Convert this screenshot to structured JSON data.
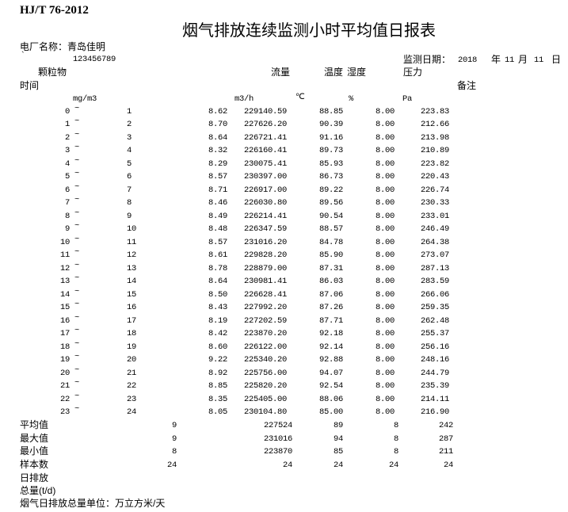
{
  "header": {
    "standard": "HJ/T 76-2012",
    "title": "烟气排放连续监测小时平均值日报表",
    "plant_label": "电厂名称：",
    "plant_name": "青岛佳明",
    "backtick": "`",
    "code": "123456789",
    "date_label": "监测日期：",
    "year": "2018",
    "year_unit": "年",
    "month": "11",
    "month_unit": "月",
    "day": "11",
    "day_unit": "日"
  },
  "columns": {
    "particulate": "颗粒物",
    "flow": "流量",
    "temp": "温度",
    "humidity": "湿度",
    "pressure": "压力",
    "time": "时间",
    "remark": "备注",
    "unit_particulate": "mg/m3",
    "unit_flow": "m3/h",
    "unit_temp": "℃",
    "unit_humidity": "%",
    "unit_pressure": "Pa"
  },
  "rows": [
    {
      "start": "0",
      "end": "1",
      "dust": "8.62",
      "flow": "229140.59",
      "temp": "88.85",
      "hum": "8.00",
      "pres": "223.83"
    },
    {
      "start": "1",
      "end": "2",
      "dust": "8.70",
      "flow": "227626.20",
      "temp": "90.39",
      "hum": "8.00",
      "pres": "212.66"
    },
    {
      "start": "2",
      "end": "3",
      "dust": "8.64",
      "flow": "226721.41",
      "temp": "91.16",
      "hum": "8.00",
      "pres": "213.98"
    },
    {
      "start": "3",
      "end": "4",
      "dust": "8.32",
      "flow": "226160.41",
      "temp": "89.73",
      "hum": "8.00",
      "pres": "210.89"
    },
    {
      "start": "4",
      "end": "5",
      "dust": "8.29",
      "flow": "230075.41",
      "temp": "85.93",
      "hum": "8.00",
      "pres": "223.82"
    },
    {
      "start": "5",
      "end": "6",
      "dust": "8.57",
      "flow": "230397.00",
      "temp": "86.73",
      "hum": "8.00",
      "pres": "220.43"
    },
    {
      "start": "6",
      "end": "7",
      "dust": "8.71",
      "flow": "226917.00",
      "temp": "89.22",
      "hum": "8.00",
      "pres": "226.74"
    },
    {
      "start": "7",
      "end": "8",
      "dust": "8.46",
      "flow": "226030.80",
      "temp": "89.56",
      "hum": "8.00",
      "pres": "230.33"
    },
    {
      "start": "8",
      "end": "9",
      "dust": "8.49",
      "flow": "226214.41",
      "temp": "90.54",
      "hum": "8.00",
      "pres": "233.01"
    },
    {
      "start": "9",
      "end": "10",
      "dust": "8.48",
      "flow": "226347.59",
      "temp": "88.57",
      "hum": "8.00",
      "pres": "246.49"
    },
    {
      "start": "10",
      "end": "11",
      "dust": "8.57",
      "flow": "231016.20",
      "temp": "84.78",
      "hum": "8.00",
      "pres": "264.38"
    },
    {
      "start": "11",
      "end": "12",
      "dust": "8.61",
      "flow": "229828.20",
      "temp": "85.90",
      "hum": "8.00",
      "pres": "273.07"
    },
    {
      "start": "12",
      "end": "13",
      "dust": "8.78",
      "flow": "228879.00",
      "temp": "87.31",
      "hum": "8.00",
      "pres": "287.13"
    },
    {
      "start": "13",
      "end": "14",
      "dust": "8.64",
      "flow": "230981.41",
      "temp": "86.03",
      "hum": "8.00",
      "pres": "283.59"
    },
    {
      "start": "14",
      "end": "15",
      "dust": "8.50",
      "flow": "226628.41",
      "temp": "87.06",
      "hum": "8.00",
      "pres": "266.06"
    },
    {
      "start": "15",
      "end": "16",
      "dust": "8.43",
      "flow": "227992.20",
      "temp": "87.26",
      "hum": "8.00",
      "pres": "259.35"
    },
    {
      "start": "16",
      "end": "17",
      "dust": "8.19",
      "flow": "227202.59",
      "temp": "87.71",
      "hum": "8.00",
      "pres": "262.48"
    },
    {
      "start": "17",
      "end": "18",
      "dust": "8.42",
      "flow": "223870.20",
      "temp": "92.18",
      "hum": "8.00",
      "pres": "255.37"
    },
    {
      "start": "18",
      "end": "19",
      "dust": "8.60",
      "flow": "226122.00",
      "temp": "92.14",
      "hum": "8.00",
      "pres": "256.16"
    },
    {
      "start": "19",
      "end": "20",
      "dust": "9.22",
      "flow": "225340.20",
      "temp": "92.88",
      "hum": "8.00",
      "pres": "248.16"
    },
    {
      "start": "20",
      "end": "21",
      "dust": "8.92",
      "flow": "225756.00",
      "temp": "94.07",
      "hum": "8.00",
      "pres": "244.79"
    },
    {
      "start": "21",
      "end": "22",
      "dust": "8.85",
      "flow": "225820.20",
      "temp": "92.54",
      "hum": "8.00",
      "pres": "235.39"
    },
    {
      "start": "22",
      "end": "23",
      "dust": "8.35",
      "flow": "225405.00",
      "temp": "88.06",
      "hum": "8.00",
      "pres": "214.11"
    },
    {
      "start": "23",
      "end": "24",
      "dust": "8.05",
      "flow": "230104.80",
      "temp": "85.00",
      "hum": "8.00",
      "pres": "216.90"
    }
  ],
  "tilde": "~",
  "summary": [
    {
      "label": "平均值",
      "dust": "9",
      "flow": "227524",
      "temp": "89",
      "hum": "8",
      "pres": "242"
    },
    {
      "label": "最大值",
      "dust": "9",
      "flow": "231016",
      "temp": "94",
      "hum": "8",
      "pres": "287"
    },
    {
      "label": "最小值",
      "dust": "8",
      "flow": "223870",
      "temp": "85",
      "hum": "8",
      "pres": "211"
    },
    {
      "label": "样本数",
      "dust": "24",
      "flow": "24",
      "temp": "24",
      "hum": "24",
      "pres": "24"
    }
  ],
  "footer": {
    "daily": "日排放",
    "total": "总量(t/d)",
    "unit_note": "烟气日排放总量单位：万立方米/天"
  }
}
